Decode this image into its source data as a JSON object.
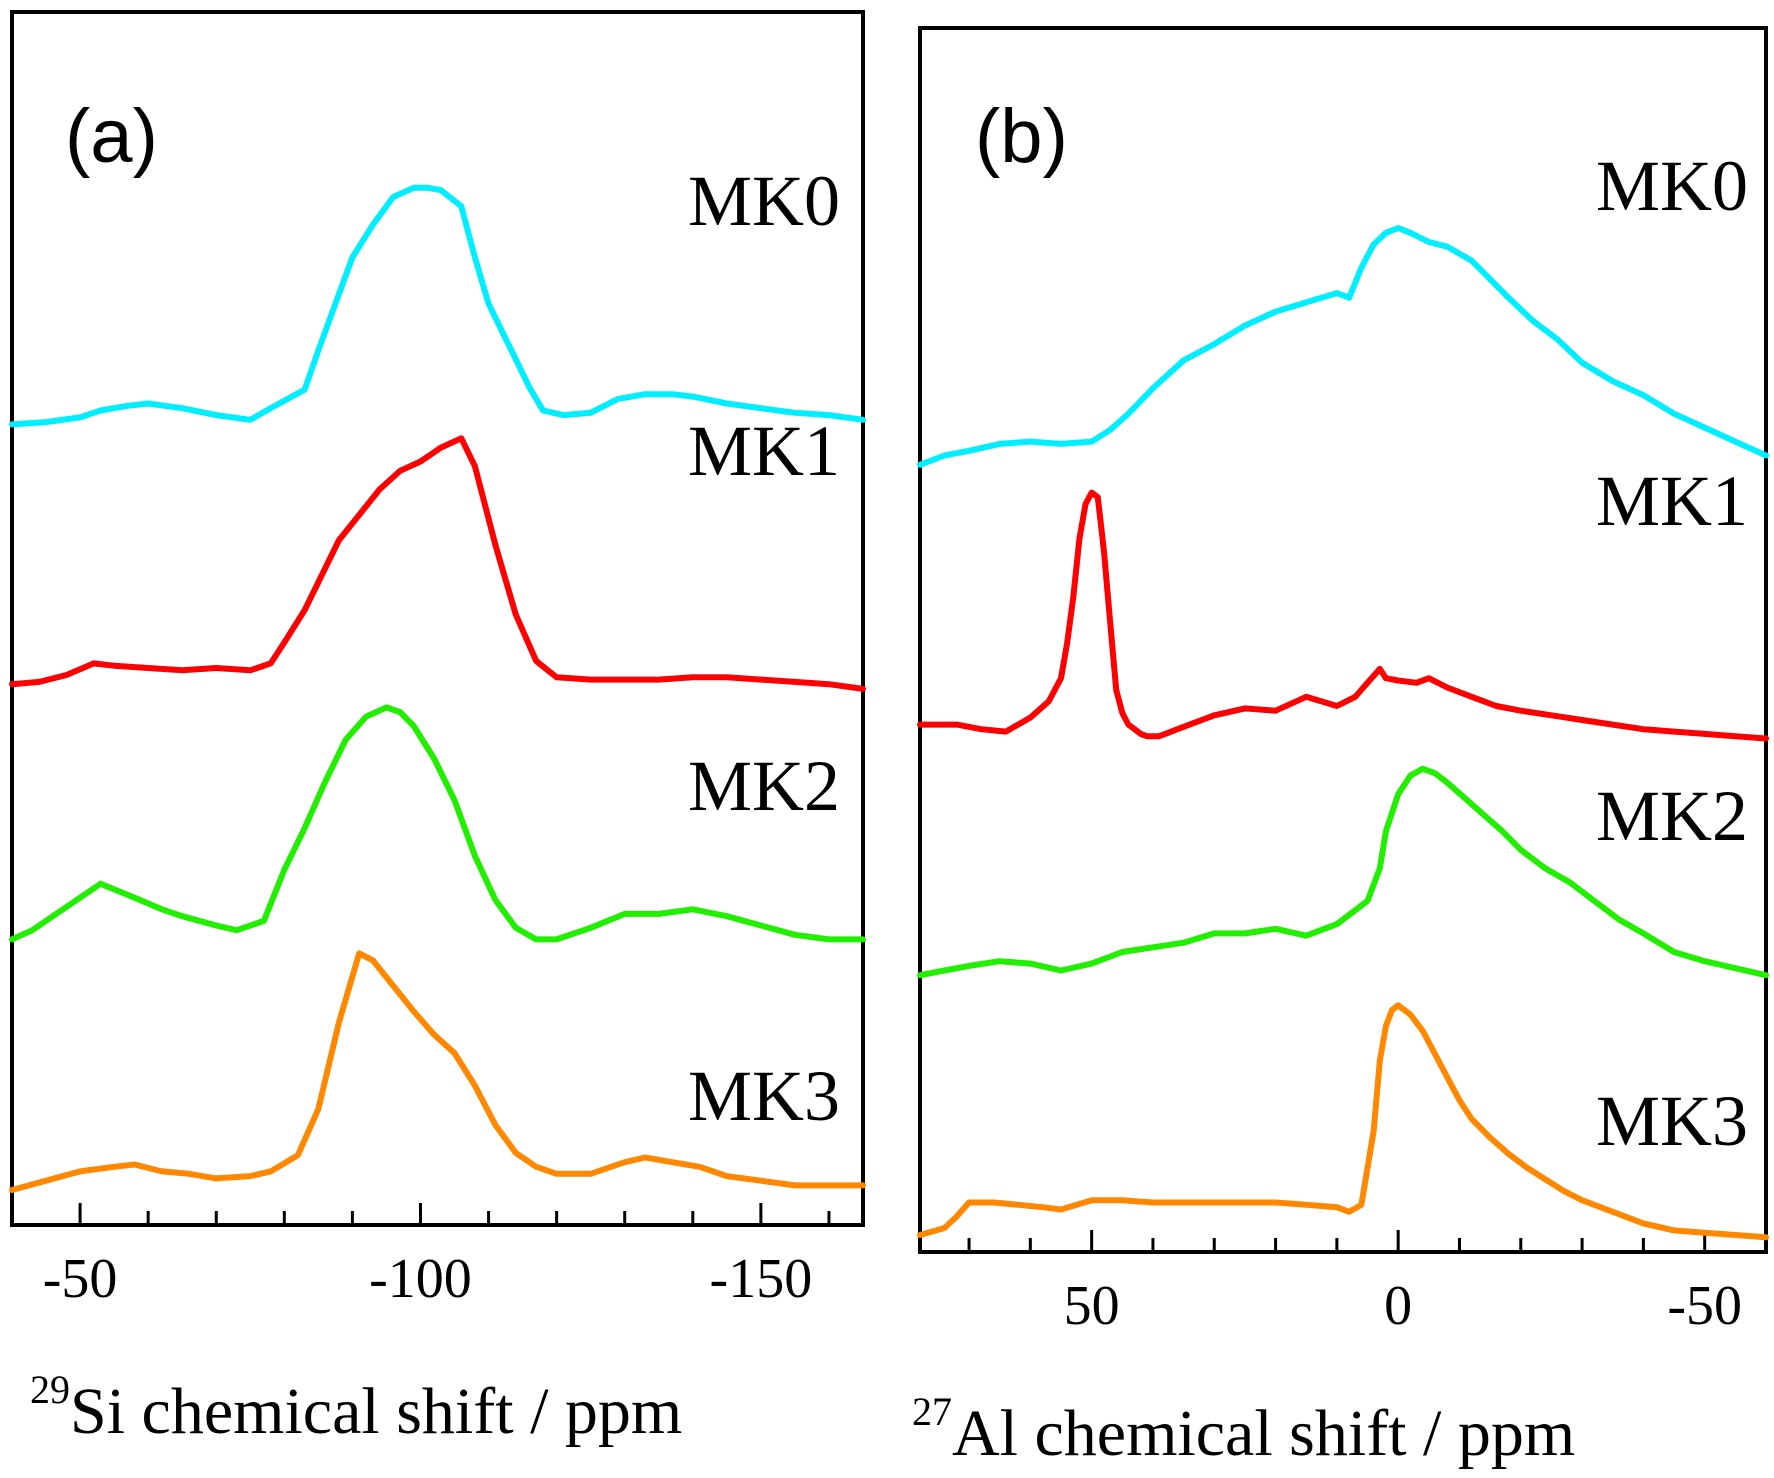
{
  "chart_data": [
    {
      "type": "line",
      "panel_label": "(a)",
      "xlabel_sup": "29",
      "xlabel": "Si chemical shift / ppm",
      "ylabel": "",
      "xlim": [
        -40,
        -165
      ],
      "ylim": [
        0,
        4.4
      ],
      "yticks": "none",
      "xticks": [
        -50,
        -60,
        -70,
        -80,
        -90,
        -100,
        -110,
        -120,
        -130,
        -140,
        -150,
        -160
      ],
      "xtick_labels": [
        {
          "value": -50,
          "label": "-50"
        },
        {
          "value": -100,
          "label": "-100"
        },
        {
          "value": -150,
          "label": "-150"
        }
      ],
      "series": [
        {
          "name": "MK0",
          "color": "#00eeff",
          "offset": 3.3,
          "x": [
            -40,
            -45,
            -50,
            -53,
            -57,
            -60,
            -65,
            -70,
            -75,
            -78,
            -83,
            -85,
            -88,
            -90,
            -93,
            -96,
            -99,
            -101,
            -103,
            -106,
            -108,
            -110,
            -113,
            -116,
            -118,
            -121,
            -125,
            -129,
            -133,
            -137,
            -140,
            -145,
            -150,
            -155,
            -160,
            -165
          ],
          "y": [
            0,
            0.01,
            0.03,
            0.06,
            0.08,
            0.09,
            0.07,
            0.04,
            0.02,
            0.07,
            0.15,
            0.32,
            0.56,
            0.72,
            0.86,
            0.98,
            1.02,
            1.02,
            1.01,
            0.94,
            0.72,
            0.52,
            0.34,
            0.16,
            0.06,
            0.04,
            0.05,
            0.11,
            0.13,
            0.13,
            0.12,
            0.09,
            0.07,
            0.05,
            0.04,
            0.02
          ]
        },
        {
          "name": "MK1",
          "color": "#ff0000",
          "offset": 2.18,
          "x": [
            -40,
            -44,
            -48,
            -52,
            -55,
            -60,
            -65,
            -70,
            -75,
            -78,
            -80,
            -83,
            -86,
            -88,
            -91,
            -94,
            -97,
            -100,
            -103,
            -106,
            -108,
            -111,
            -114,
            -117,
            -120,
            -125,
            -130,
            -135,
            -140,
            -145,
            -150,
            -155,
            -160,
            -165
          ],
          "y": [
            0,
            0.01,
            0.04,
            0.09,
            0.08,
            0.07,
            0.06,
            0.07,
            0.06,
            0.09,
            0.18,
            0.32,
            0.5,
            0.62,
            0.73,
            0.84,
            0.92,
            0.96,
            1.02,
            1.06,
            0.94,
            0.6,
            0.3,
            0.1,
            0.03,
            0.02,
            0.02,
            0.02,
            0.03,
            0.03,
            0.02,
            0.01,
            0.0,
            -0.02
          ]
        },
        {
          "name": "MK2",
          "color": "#22ee00",
          "offset": 1.08,
          "x": [
            -40,
            -43,
            -46,
            -50,
            -53,
            -58,
            -62,
            -65,
            -70,
            -73,
            -77,
            -80,
            -83,
            -86,
            -89,
            -92,
            -95,
            -97,
            -99,
            -102,
            -105,
            -108,
            -111,
            -114,
            -117,
            -120,
            -125,
            -130,
            -135,
            -140,
            -145,
            -150,
            -155,
            -160,
            -165
          ],
          "y": [
            0,
            0.04,
            0.1,
            0.18,
            0.24,
            0.18,
            0.13,
            0.1,
            0.06,
            0.04,
            0.08,
            0.3,
            0.48,
            0.68,
            0.86,
            0.96,
            1.0,
            0.98,
            0.92,
            0.78,
            0.6,
            0.36,
            0.17,
            0.05,
            0.0,
            0.0,
            0.05,
            0.11,
            0.11,
            0.13,
            0.1,
            0.06,
            0.02,
            0.0,
            0.0
          ]
        },
        {
          "name": "MK3",
          "color": "#ff8800",
          "offset": 0.0,
          "x": [
            -40,
            -45,
            -50,
            -55,
            -58,
            -62,
            -66,
            -70,
            -75,
            -78,
            -82,
            -85,
            -88,
            -91,
            -93,
            -96,
            -99,
            -102,
            -105,
            -108,
            -111,
            -114,
            -117,
            -120,
            -125,
            -130,
            -133,
            -137,
            -141,
            -145,
            -150,
            -155,
            -160,
            -165
          ],
          "y": [
            0,
            0.04,
            0.08,
            0.1,
            0.11,
            0.08,
            0.07,
            0.05,
            0.06,
            0.08,
            0.15,
            0.35,
            0.72,
            1.02,
            0.99,
            0.88,
            0.77,
            0.67,
            0.59,
            0.45,
            0.28,
            0.16,
            0.1,
            0.07,
            0.07,
            0.12,
            0.14,
            0.12,
            0.1,
            0.06,
            0.04,
            0.02,
            0.02,
            0.02
          ]
        }
      ]
    },
    {
      "type": "line",
      "panel_label": "(b)",
      "xlabel_sup": "27",
      "xlabel": "Al chemical shift / ppm",
      "ylabel": "",
      "xlim": [
        78,
        -60
      ],
      "ylim": [
        0,
        4.4
      ],
      "yticks": "none",
      "xticks": [
        70,
        60,
        50,
        40,
        30,
        20,
        10,
        0,
        -10,
        -20,
        -30,
        -40,
        -50
      ],
      "xtick_labels": [
        {
          "value": 50,
          "label": "50"
        },
        {
          "value": 0,
          "label": "0"
        },
        {
          "value": -50,
          "label": "-50"
        }
      ],
      "series": [
        {
          "name": "MK0",
          "color": "#00eeff",
          "offset": 3.32,
          "x": [
            78,
            74,
            70,
            65,
            60,
            55,
            50,
            47,
            44,
            40,
            35,
            30,
            25,
            20,
            15,
            10,
            8,
            6,
            4,
            2,
            0,
            -2,
            -5,
            -8,
            -12,
            -15,
            -18,
            -22,
            -26,
            -30,
            -35,
            -40,
            -45,
            -50,
            -55,
            -60
          ],
          "y": [
            0,
            0.04,
            0.06,
            0.09,
            0.1,
            0.09,
            0.1,
            0.15,
            0.22,
            0.33,
            0.45,
            0.52,
            0.6,
            0.66,
            0.7,
            0.74,
            0.72,
            0.85,
            0.95,
            1.0,
            1.02,
            1.0,
            0.96,
            0.94,
            0.88,
            0.8,
            0.72,
            0.62,
            0.54,
            0.44,
            0.36,
            0.3,
            0.22,
            0.16,
            0.1,
            0.04
          ]
        },
        {
          "name": "MK1",
          "color": "#ff0000",
          "offset": 2.2,
          "x": [
            78,
            72,
            68,
            64,
            60,
            57,
            55,
            54,
            53,
            52,
            51,
            50,
            49,
            48,
            47,
            46,
            45,
            44,
            43,
            42,
            41,
            40,
            39,
            38,
            37,
            36,
            34,
            30,
            25,
            20,
            15,
            10,
            7,
            5,
            3,
            2,
            0,
            -3,
            -5,
            -8,
            -12,
            -16,
            -20,
            -25,
            -30,
            -35,
            -40,
            -45,
            -50,
            -55,
            -60
          ],
          "y": [
            0,
            0.0,
            -0.02,
            -0.03,
            0.03,
            0.1,
            0.2,
            0.35,
            0.55,
            0.8,
            0.95,
            1.0,
            0.98,
            0.75,
            0.45,
            0.15,
            0.05,
            0.0,
            -0.02,
            -0.04,
            -0.05,
            -0.05,
            -0.05,
            -0.04,
            -0.03,
            -0.02,
            0.0,
            0.04,
            0.07,
            0.06,
            0.12,
            0.08,
            0.12,
            0.18,
            0.24,
            0.2,
            0.19,
            0.18,
            0.2,
            0.16,
            0.12,
            0.08,
            0.06,
            0.04,
            0.02,
            0.0,
            -0.02,
            -0.03,
            -0.04,
            -0.05,
            -0.06
          ]
        },
        {
          "name": "MK2",
          "color": "#22ee00",
          "offset": 1.12,
          "x": [
            78,
            74,
            70,
            65,
            60,
            55,
            50,
            45,
            40,
            35,
            30,
            25,
            20,
            15,
            10,
            7,
            5,
            3,
            2,
            0,
            -2,
            -4,
            -6,
            -8,
            -11,
            -14,
            -17,
            -20,
            -24,
            -28,
            -32,
            -36,
            -40,
            -45,
            -50,
            -55,
            -60
          ],
          "y": [
            0,
            0.02,
            0.04,
            0.06,
            0.05,
            0.02,
            0.05,
            0.1,
            0.12,
            0.14,
            0.18,
            0.18,
            0.2,
            0.17,
            0.22,
            0.28,
            0.32,
            0.46,
            0.62,
            0.78,
            0.86,
            0.89,
            0.87,
            0.83,
            0.76,
            0.69,
            0.62,
            0.54,
            0.46,
            0.4,
            0.32,
            0.24,
            0.18,
            0.1,
            0.06,
            0.03,
            0.0
          ]
        },
        {
          "name": "MK3",
          "color": "#ff8800",
          "offset": 0.0,
          "x": [
            78,
            74,
            72,
            70,
            66,
            62,
            58,
            55,
            50,
            45,
            40,
            35,
            30,
            25,
            20,
            15,
            10,
            8,
            6,
            4,
            3,
            2,
            1,
            0,
            -2,
            -4,
            -6,
            -8,
            -10,
            -12,
            -15,
            -18,
            -21,
            -24,
            -27,
            -30,
            -35,
            -40,
            -45,
            -50,
            -55,
            -60
          ],
          "y": [
            0,
            0.03,
            0.08,
            0.14,
            0.14,
            0.13,
            0.12,
            0.11,
            0.15,
            0.15,
            0.14,
            0.14,
            0.14,
            0.14,
            0.14,
            0.13,
            0.12,
            0.1,
            0.13,
            0.45,
            0.75,
            0.9,
            0.97,
            0.99,
            0.95,
            0.88,
            0.78,
            0.68,
            0.58,
            0.5,
            0.42,
            0.35,
            0.29,
            0.24,
            0.19,
            0.15,
            0.1,
            0.05,
            0.02,
            0.01,
            0.0,
            -0.01
          ]
        }
      ]
    }
  ]
}
